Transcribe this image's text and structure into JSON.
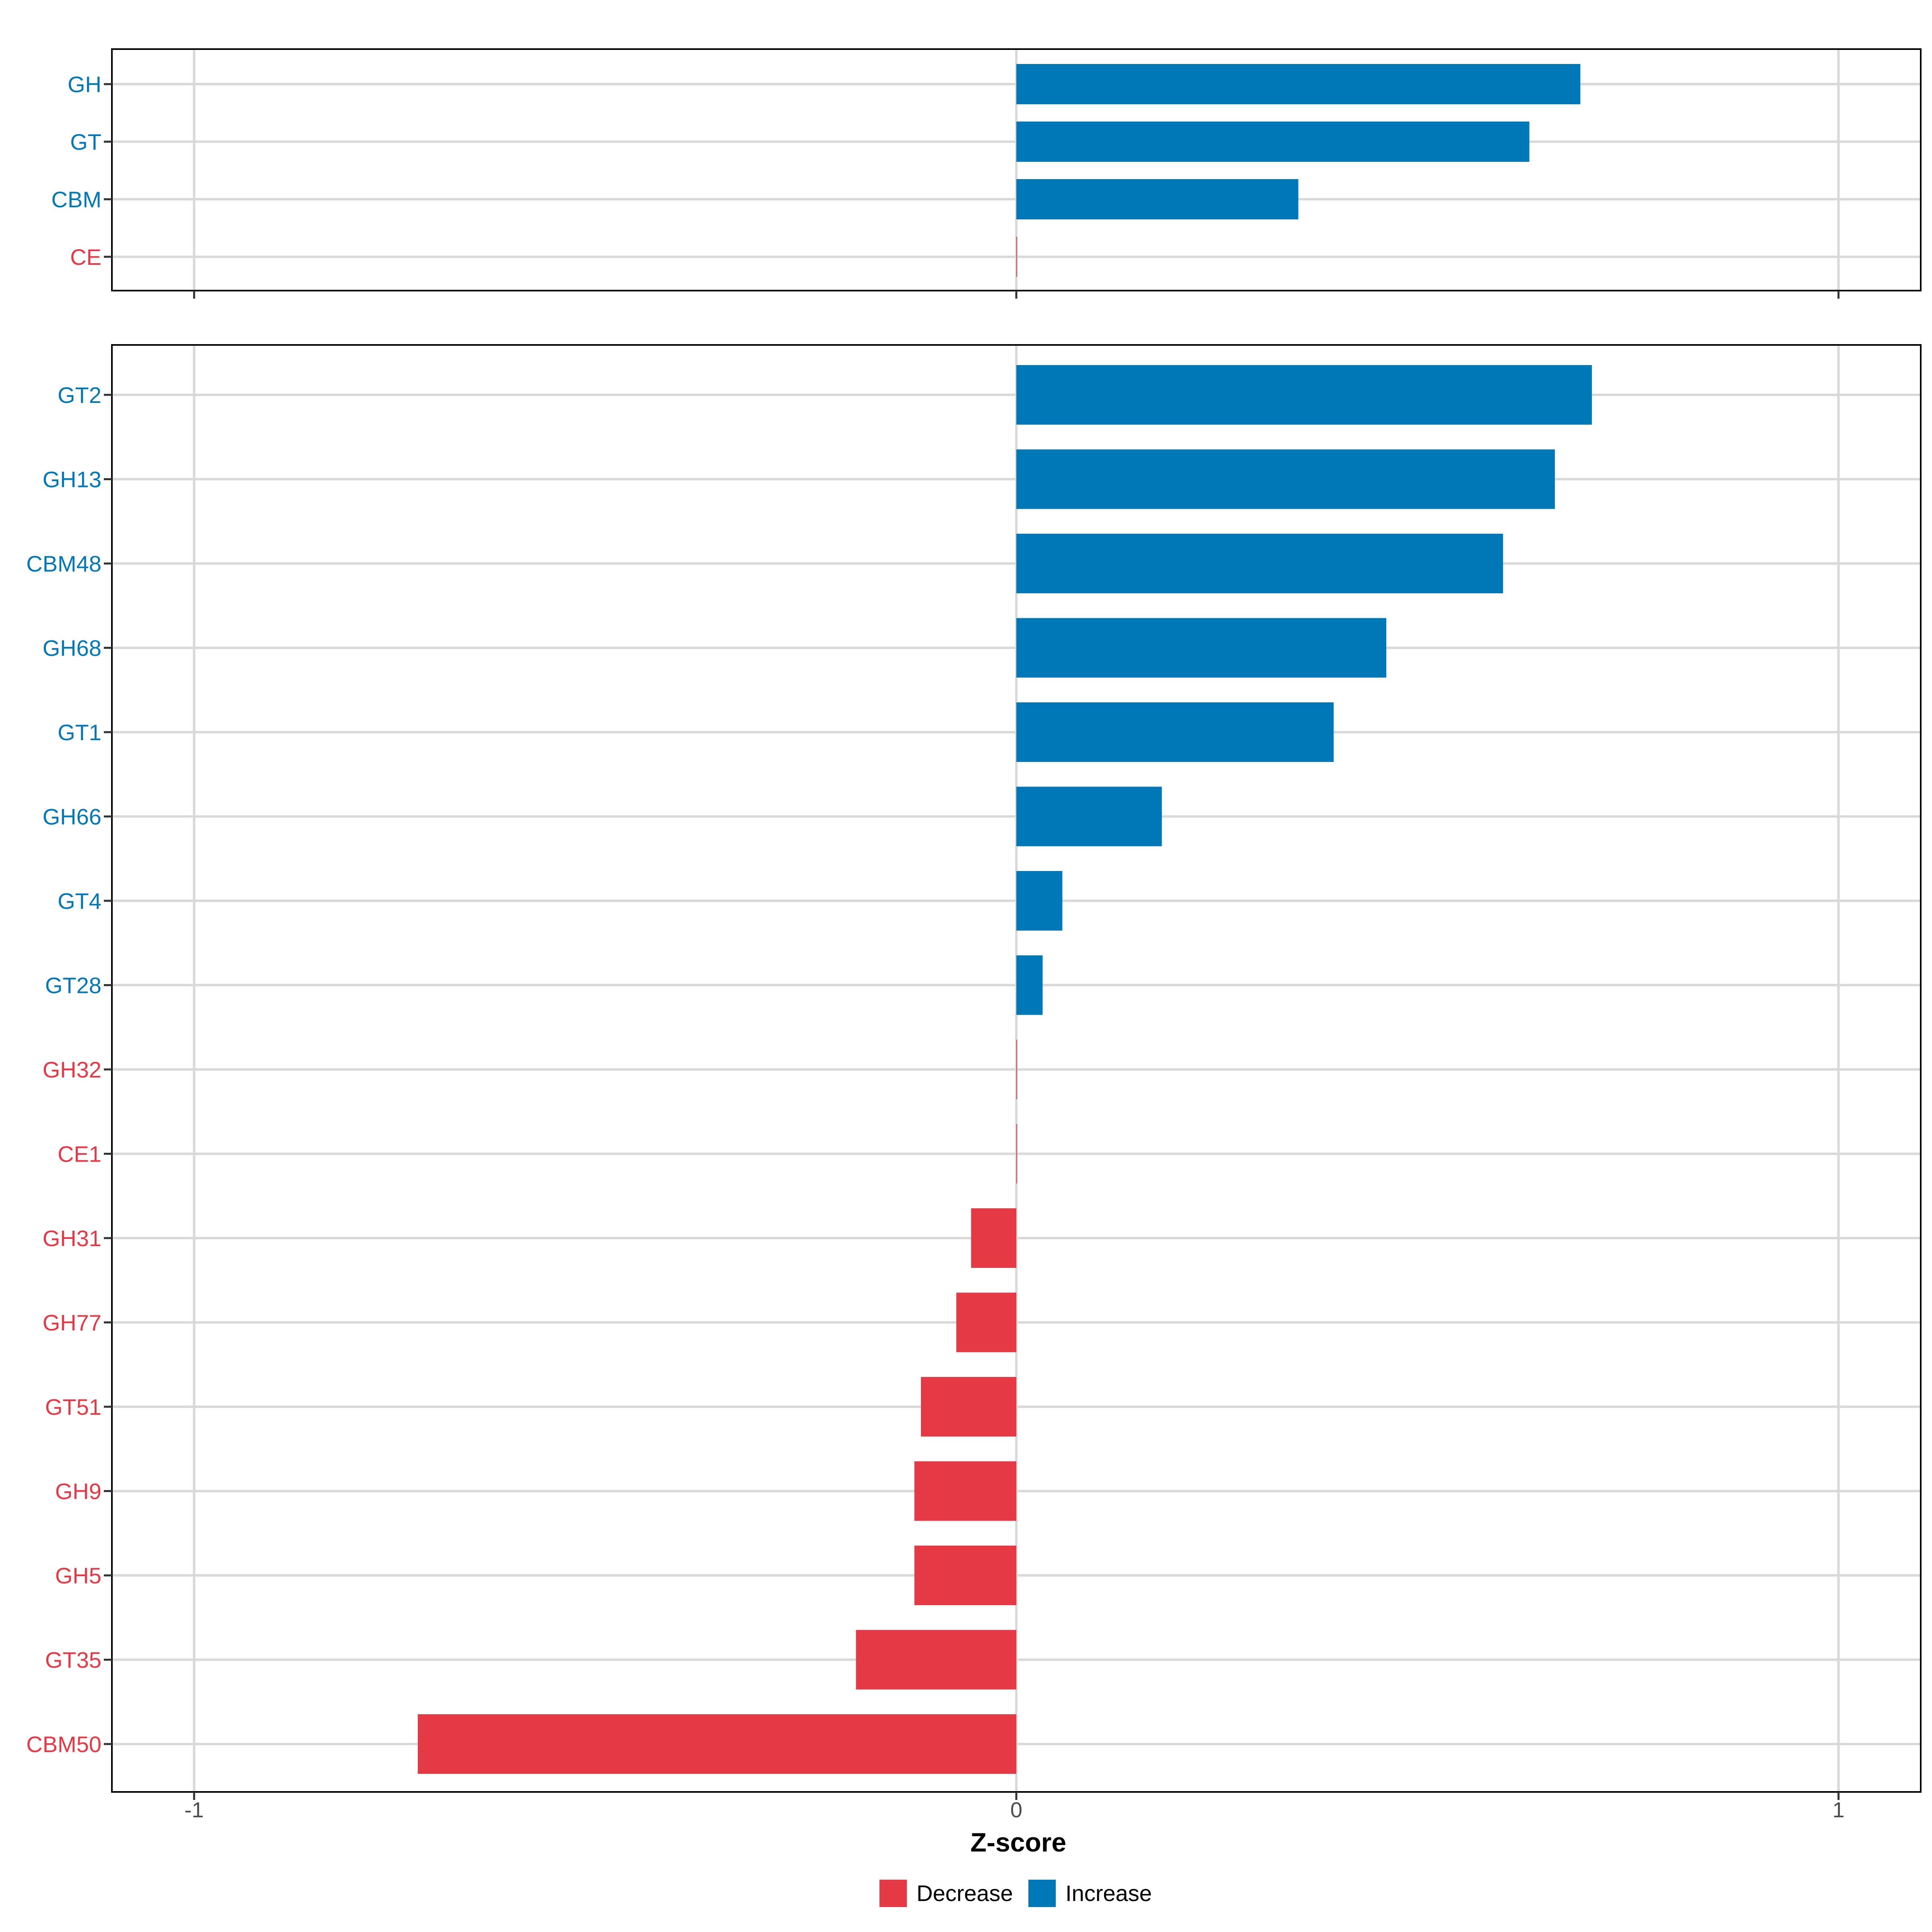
{
  "chart_data": [
    {
      "type": "bar",
      "orientation": "horizontal",
      "panel": "top",
      "categories": [
        "GH",
        "GT",
        "CBM",
        "CE"
      ],
      "values": [
        0.686,
        0.624,
        0.343,
        0.0
      ],
      "directions": [
        "Increase",
        "Increase",
        "Increase",
        "Decrease"
      ],
      "xlim": [
        -1.1,
        1.1
      ],
      "grid": true
    },
    {
      "type": "bar",
      "orientation": "horizontal",
      "panel": "bottom",
      "categories": [
        "GT2",
        "GH13",
        "CBM48",
        "GH68",
        "GT1",
        "GH66",
        "GT4",
        "GT28",
        "GH32",
        "CE1",
        "GH31",
        "GH77",
        "GT51",
        "GH9",
        "GH5",
        "GT35",
        "CBM50"
      ],
      "values": [
        0.7,
        0.655,
        0.592,
        0.45,
        0.386,
        0.177,
        0.056,
        0.032,
        0.0,
        0.0,
        -0.055,
        -0.073,
        -0.116,
        -0.124,
        -0.124,
        -0.195,
        -0.728
      ],
      "directions": [
        "Increase",
        "Increase",
        "Increase",
        "Increase",
        "Increase",
        "Increase",
        "Increase",
        "Increase",
        "Decrease",
        "Decrease",
        "Decrease",
        "Decrease",
        "Decrease",
        "Decrease",
        "Decrease",
        "Decrease",
        "Decrease"
      ],
      "xlim": [
        -1.1,
        1.1
      ],
      "grid": true
    }
  ],
  "x_axis": {
    "ticks": [
      -1,
      0,
      1
    ],
    "tick_labels": [
      "-1",
      "0",
      "1"
    ],
    "label": "Z-score"
  },
  "legend": {
    "placement": "bottom",
    "items": [
      {
        "label": "Decrease",
        "color": "#E63946"
      },
      {
        "label": "Increase",
        "color": "#0077B6"
      }
    ]
  },
  "colors": {
    "Decrease": "#E63946",
    "Increase": "#0077B6",
    "grid": "#d9d9d9",
    "frame": "#000000"
  }
}
